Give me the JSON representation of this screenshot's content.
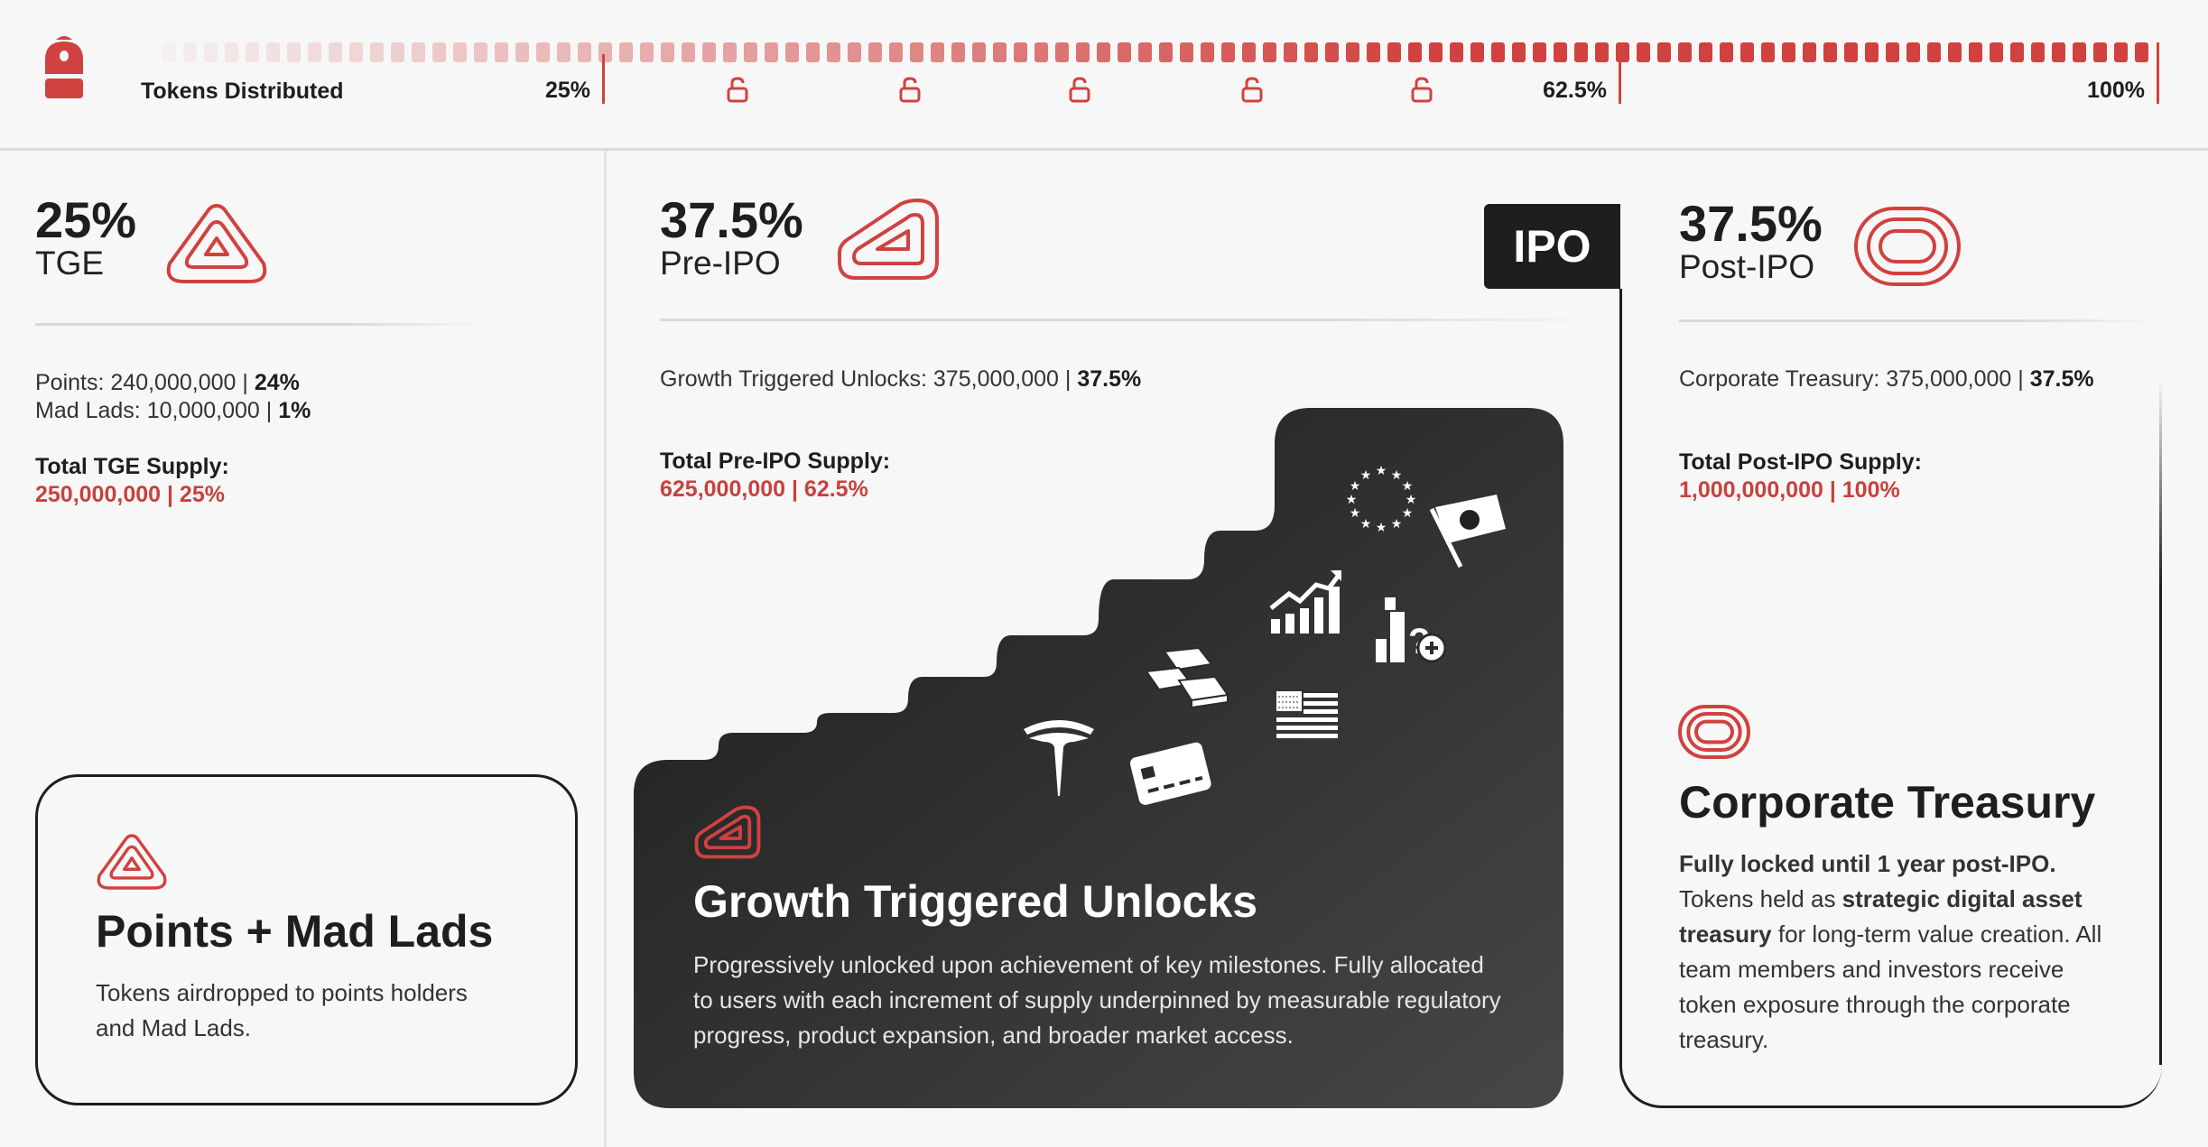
{
  "header": {
    "icon": "backpack-icon",
    "label": "Tokens Distributed",
    "markers": [
      {
        "label": "25%",
        "value": 25
      },
      {
        "label": "62.5%",
        "value": 62.5
      },
      {
        "label": "100%",
        "value": 100
      }
    ],
    "locks": [
      "lock-icon",
      "lock-icon",
      "lock-icon",
      "lock-icon",
      "lock-icon"
    ]
  },
  "colors": {
    "accent": "#d0423f",
    "dark": "#1e1e1e",
    "background": "#f7f7f7"
  },
  "tge": {
    "percent": "25%",
    "phase": "TGE",
    "icon": "triangle-rings-icon",
    "lines": [
      {
        "label": "Points:",
        "value": "240,000,000 |",
        "pct": "24%"
      },
      {
        "label": "Mad Lads:",
        "value": "10,000,000 |",
        "pct": "1%"
      }
    ],
    "total_label": "Total TGE Supply:",
    "total_value": "250,000,000 | 25%",
    "card": {
      "title": "Points + Mad Lads",
      "desc": "Tokens airdropped to points holders and Mad Lads."
    }
  },
  "pre_ipo": {
    "percent": "37.5%",
    "phase": "Pre-IPO",
    "icon": "slanted-rings-icon",
    "badge": "IPO",
    "lines": [
      {
        "label": "Growth Triggered Unlocks:",
        "value": "375,000,000 |",
        "pct": "37.5%"
      }
    ],
    "total_label": "Total Pre-IPO Supply:",
    "total_value": "625,000,000 | 62.5%",
    "card": {
      "title": "Growth Triggered Unlocks",
      "desc": "Progressively unlocked upon achievement of key milestones. Fully allocated to users with each increment of supply underpinned by measurable regulatory progress, product expansion, and broader market access.",
      "icons": [
        "eu-stars-icon",
        "japan-flag-icon",
        "stock-chart-icon",
        "stocks-question-icon",
        "gold-bars-icon",
        "us-flag-icon",
        "tesla-logo-icon",
        "credit-card-icon"
      ]
    }
  },
  "post_ipo": {
    "percent": "37.5%",
    "phase": "Post-IPO",
    "icon": "oval-rings-icon",
    "lines": [
      {
        "label": "Corporate Treasury:",
        "value": "375,000,000 |",
        "pct": "37.5%"
      }
    ],
    "total_label": "Total Post-IPO Supply:",
    "total_value": "1,000,000,000 | 100%",
    "card": {
      "title": "Corporate Treasury",
      "bold_intro": "Fully locked until 1 year post-IPO.",
      "desc_a": "Tokens held as ",
      "desc_bold": "strategic digital asset treasury",
      "desc_b": " for long-term value creation. All team members and investors receive token exposure through the corporate treasury."
    }
  }
}
